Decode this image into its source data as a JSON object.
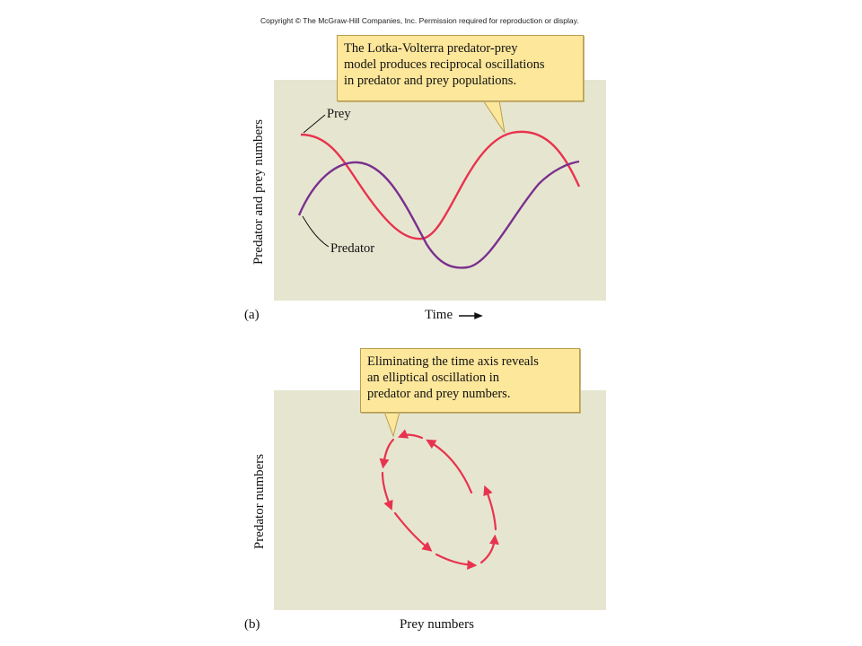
{
  "copyright": "Copyright © The McGraw-Hill Companies, Inc. Permission required for reproduction or display.",
  "panel_a": {
    "label": "(a)",
    "callout_lines": [
      "The Lotka-Volterra predator-prey",
      "model produces reciprocal oscillations",
      "in predator and prey populations."
    ],
    "y_axis_label": "Predator and prey numbers",
    "x_axis_label": "Time",
    "series": [
      {
        "name": "Prey",
        "color": "#e8334f"
      },
      {
        "name": "Predator",
        "color": "#7a2f8e"
      }
    ]
  },
  "panel_b": {
    "label": "(b)",
    "callout_lines": [
      "Eliminating the time axis reveals",
      "an elliptical oscillation in",
      "predator and prey numbers."
    ],
    "y_axis_label": "Predator numbers",
    "x_axis_label": "Prey numbers",
    "cycle_color": "#e8334f"
  },
  "colors": {
    "panel_background": "#e6e6d0",
    "callout_fill": "#fde79b",
    "callout_border": "#b89d4e"
  }
}
